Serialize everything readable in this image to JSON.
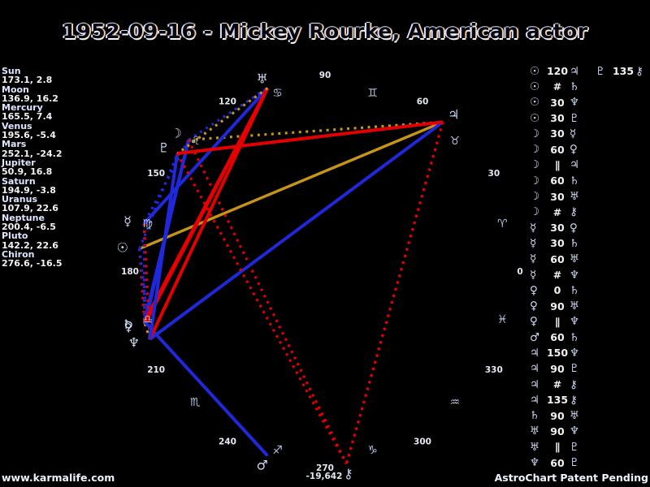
{
  "title": "1952-09-16 - Mickey Rourke, American actor",
  "footer": {
    "left": "www.karmalife.com",
    "right": "AstroChart Patent Pending"
  },
  "chart_data": {
    "type": "scatter",
    "title": "1952-09-16 - Mickey Rourke, American actor",
    "layout": "zodiac ellipse, longitude 0 at right increasing counterclockwise; planets plotted at their ecliptic longitude; aspect lines drawn between planets",
    "planets": [
      {
        "name": "Sun",
        "glyph": "☉",
        "lon": 173.1,
        "dec": 2.8,
        "value": "173.1, 2.8"
      },
      {
        "name": "Moon",
        "glyph": "☽",
        "lon": 136.9,
        "dec": 16.2,
        "value": "136.9, 16.2"
      },
      {
        "name": "Mercury",
        "glyph": "☿",
        "lon": 165.5,
        "dec": 7.4,
        "value": "165.5, 7.4"
      },
      {
        "name": "Venus",
        "glyph": "♀",
        "lon": 195.6,
        "dec": -5.4,
        "value": "195.6, -5.4"
      },
      {
        "name": "Mars",
        "glyph": "♂",
        "lon": 252.1,
        "dec": -24.2,
        "value": "252.1, -24.2"
      },
      {
        "name": "Jupiter",
        "glyph": "♃",
        "lon": 50.9,
        "dec": 16.8,
        "value": "50.9, 16.8"
      },
      {
        "name": "Saturn",
        "glyph": "♄",
        "lon": 194.9,
        "dec": -3.8,
        "value": "194.9, -3.8"
      },
      {
        "name": "Uranus",
        "glyph": "♅",
        "lon": 107.9,
        "dec": 22.6,
        "value": "107.9, 22.6"
      },
      {
        "name": "Neptune",
        "glyph": "♆",
        "lon": 200.4,
        "dec": -6.5,
        "value": "200.4, -6.5"
      },
      {
        "name": "Pluto",
        "glyph": "♇",
        "lon": 142.2,
        "dec": 22.6,
        "value": "142.2, 22.6"
      },
      {
        "name": "Chiron",
        "glyph": "⚷",
        "lon": 276.6,
        "dec": -16.5,
        "value": "276.6, -16.5"
      }
    ],
    "zodiac_signs": [
      {
        "name": "aries",
        "glyph": "♈",
        "mid": 15
      },
      {
        "name": "taurus",
        "glyph": "♉",
        "mid": 45
      },
      {
        "name": "gemini",
        "glyph": "♊",
        "mid": 75
      },
      {
        "name": "cancer",
        "glyph": "♋",
        "mid": 105
      },
      {
        "name": "leo",
        "glyph": "♌",
        "mid": 135
      },
      {
        "name": "virgo",
        "glyph": "♍",
        "mid": 165
      },
      {
        "name": "libra",
        "glyph": "♎",
        "mid": 195
      },
      {
        "name": "scorpio",
        "glyph": "♏",
        "mid": 225
      },
      {
        "name": "sagittarius",
        "glyph": "♐",
        "mid": 255
      },
      {
        "name": "capricorn",
        "glyph": "♑",
        "mid": 285
      },
      {
        "name": "aquarius",
        "glyph": "♒",
        "mid": 315
      },
      {
        "name": "pisces",
        "glyph": "♓",
        "mid": 345
      }
    ],
    "degree_ticks": [
      0,
      30,
      60,
      90,
      120,
      150,
      180,
      210,
      240,
      270,
      300,
      330
    ],
    "extra_label": "-19,642",
    "aspect_styles": {
      "0": {
        "color": "#c59418",
        "dash": false
      },
      "30": {
        "color": "#2028dc",
        "dash": true
      },
      "60": {
        "color": "#2028dc",
        "dash": false
      },
      "90": {
        "color": "#e40000",
        "dash": false
      },
      "120": {
        "color": "#c59418",
        "dash": false
      },
      "135": {
        "color": "#e40000",
        "dash": true
      },
      "150": {
        "color": "#2028dc",
        "dash": false
      },
      "∥": {
        "color": "#c59418",
        "dash": true
      },
      "#": {
        "color": "#e40000",
        "dash": true
      }
    },
    "aspects": [
      {
        "a": "Sun",
        "sym": "120",
        "b": "Jupiter"
      },
      {
        "a": "Sun",
        "sym": "#",
        "b": "Saturn"
      },
      {
        "a": "Sun",
        "sym": "30",
        "b": "Neptune"
      },
      {
        "a": "Sun",
        "sym": "30",
        "b": "Pluto"
      },
      {
        "a": "Moon",
        "sym": "30",
        "b": "Mercury"
      },
      {
        "a": "Moon",
        "sym": "60",
        "b": "Venus"
      },
      {
        "a": "Moon",
        "sym": "∥",
        "b": "Jupiter"
      },
      {
        "a": "Moon",
        "sym": "60",
        "b": "Saturn"
      },
      {
        "a": "Moon",
        "sym": "30",
        "b": "Uranus"
      },
      {
        "a": "Moon",
        "sym": "#",
        "b": "Chiron"
      },
      {
        "a": "Mercury",
        "sym": "30",
        "b": "Venus"
      },
      {
        "a": "Mercury",
        "sym": "30",
        "b": "Saturn"
      },
      {
        "a": "Mercury",
        "sym": "60",
        "b": "Uranus"
      },
      {
        "a": "Mercury",
        "sym": "#",
        "b": "Neptune"
      },
      {
        "a": "Venus",
        "sym": "0",
        "b": "Saturn"
      },
      {
        "a": "Venus",
        "sym": "90",
        "b": "Uranus"
      },
      {
        "a": "Venus",
        "sym": "∥",
        "b": "Neptune"
      },
      {
        "a": "Mars",
        "sym": "60",
        "b": "Saturn"
      },
      {
        "a": "Jupiter",
        "sym": "150",
        "b": "Neptune"
      },
      {
        "a": "Jupiter",
        "sym": "90",
        "b": "Pluto"
      },
      {
        "a": "Jupiter",
        "sym": "#",
        "b": "Chiron"
      },
      {
        "a": "Jupiter",
        "sym": "135",
        "b": "Chiron"
      },
      {
        "a": "Saturn",
        "sym": "90",
        "b": "Uranus"
      },
      {
        "a": "Uranus",
        "sym": "90",
        "b": "Neptune"
      },
      {
        "a": "Uranus",
        "sym": "∥",
        "b": "Pluto"
      },
      {
        "a": "Neptune",
        "sym": "60",
        "b": "Pluto"
      },
      {
        "a": "Pluto",
        "sym": "135",
        "b": "Chiron",
        "overflow": true
      }
    ]
  }
}
